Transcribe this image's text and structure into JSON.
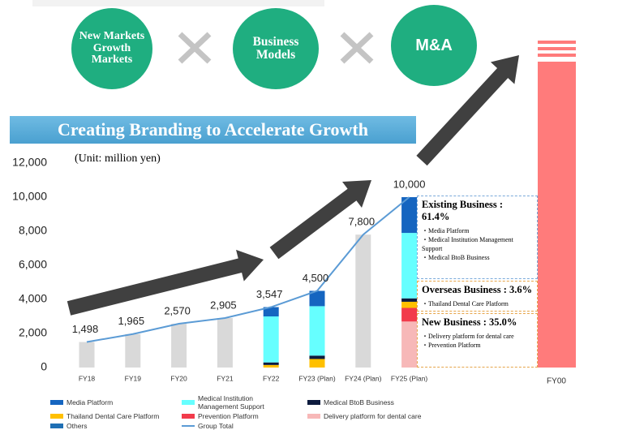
{
  "circles": [
    "New Markets Growth Markets",
    "Business Models",
    "M&A"
  ],
  "banner": "Creating Branding to Accelerate Growth",
  "chart_data": {
    "type": "bar",
    "unit": "(Unit: million yen)",
    "categories": [
      "FY18",
      "FY19",
      "FY20",
      "FY21",
      "FY22",
      "FY23 (Plan)",
      "FY24 (Plan)",
      "FY25 (Plan)"
    ],
    "ylim": [
      0,
      12000
    ],
    "yticks": [
      0,
      {
        "value": 2000,
        "label": "2,000"
      },
      {
        "value": 4000,
        "label": "4,000"
      },
      {
        "value": 6000,
        "label": "6,000"
      },
      {
        "value": 8000,
        "label": "8,000"
      },
      {
        "value": 10000,
        "label": "10,000"
      },
      {
        "value": 12000,
        "label": "12,000"
      }
    ],
    "grid": false,
    "stacked": true,
    "total_bar_color": "#d9d9d9",
    "series": [
      {
        "name": "Media Platform",
        "color": "#1565c0",
        "values": [
          null,
          null,
          null,
          null,
          547,
          900,
          null,
          2100
        ]
      },
      {
        "name": "Medical Institution Management Support",
        "color": "#66ffff",
        "values": [
          null,
          null,
          null,
          null,
          2700,
          2900,
          null,
          3840
        ]
      },
      {
        "name": "Medical BtoB Business",
        "color": "#0d1b3e",
        "values": [
          null,
          null,
          null,
          null,
          150,
          200,
          null,
          200
        ]
      },
      {
        "name": "Thailand Dental Care Platform",
        "color": "#ffc000",
        "values": [
          null,
          null,
          null,
          null,
          150,
          500,
          null,
          360
        ]
      },
      {
        "name": "Prevention Platform",
        "color": "#f23b4b",
        "values": [
          null,
          null,
          null,
          null,
          null,
          null,
          null,
          800
        ]
      },
      {
        "name": "Delivery platform for dental care",
        "color": "#f7b8b8",
        "values": [
          null,
          null,
          null,
          null,
          null,
          null,
          null,
          2700
        ]
      },
      {
        "name": "Others",
        "color": "#1f6fb4",
        "values": [
          null,
          null,
          null,
          null,
          null,
          null,
          null,
          null
        ]
      }
    ],
    "total": {
      "name": "Group Total",
      "color": "#5b9bd5",
      "values": [
        1498,
        1965,
        2570,
        2905,
        3547,
        4500,
        7800,
        10000
      ],
      "value_labels": [
        "1,498",
        "1,965",
        "2,570",
        "2,905",
        "3,547",
        "4,500",
        "7,800",
        "10,000"
      ]
    },
    "projection_label": "FY00",
    "projection_color": "#ff7b7b",
    "breakdown": [
      {
        "title": "Existing Business : 61.4%",
        "items": [
          "・Media Platform",
          "・Medical Institution Management Support",
          "・Medical BtoB Business"
        ]
      },
      {
        "title": "Overseas Business : 3.6%",
        "items": [
          "・Thailand Dental Care Platform"
        ]
      },
      {
        "title": "New Business : 35.0%",
        "items": [
          "・Delivery platform for dental care",
          "・Prevention Platform"
        ]
      }
    ]
  }
}
